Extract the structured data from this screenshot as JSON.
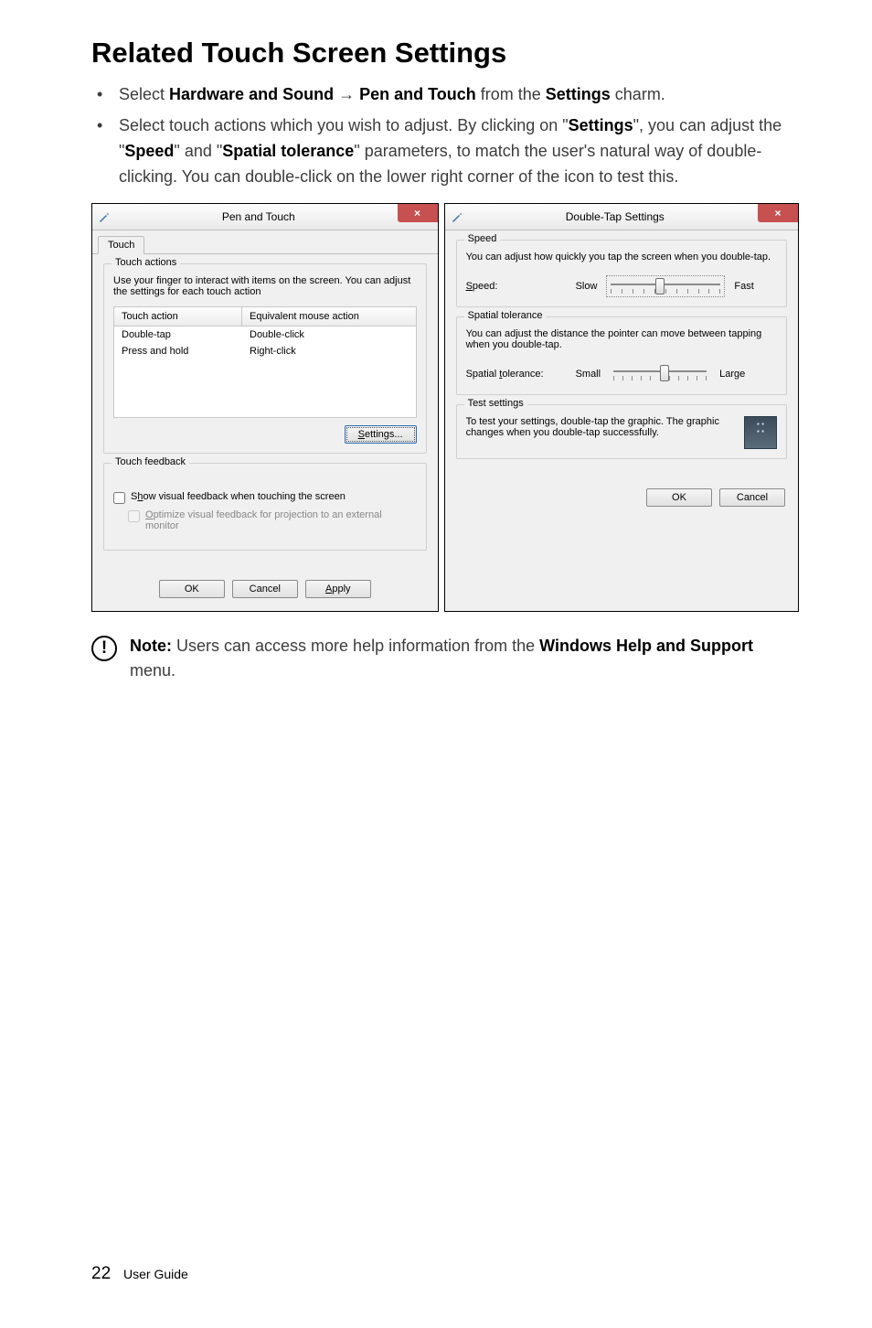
{
  "heading": "Related Touch Screen Settings",
  "bullet1": {
    "pre": "Select ",
    "b1": "Hardware and Sound",
    "arrow": " → ",
    "b2": "Pen and Touch",
    "mid": " from the ",
    "b3": "Settings",
    "post": " charm."
  },
  "bullet2": {
    "pre": "Select touch actions which you wish to adjust. By clicking on \"",
    "b1": "Settings",
    "mid1": "\", you can adjust the \"",
    "b2": "Speed",
    "mid2": "\" and \"",
    "b3": "Spatial tolerance",
    "post": "\" parameters, to match the user's natural way of double-clicking. You can double-click on the lower right corner of the icon to test this."
  },
  "left_dialog": {
    "title": "Pen and Touch",
    "close": "×",
    "tab": "Touch",
    "group_actions_title": "Touch actions",
    "group_actions_desc": "Use your finger to interact with items on the screen. You can adjust the settings for each touch action",
    "col1": "Touch action",
    "col2": "Equivalent mouse action",
    "rows": [
      {
        "a": "Double-tap",
        "b": "Double-click"
      },
      {
        "a": "Press and hold",
        "b": "Right-click"
      }
    ],
    "settings_btn_u": "S",
    "settings_btn_rest": "ettings...",
    "group_feedback_title": "Touch feedback",
    "cb1_u": "h",
    "cb1_pre": "S",
    "cb1_rest": "ow visual feedback when touching the screen",
    "cb2_u": "O",
    "cb2_rest": "ptimize visual feedback for projection to an external monitor",
    "ok": "OK",
    "cancel": "Cancel",
    "apply_u": "A",
    "apply_rest": "pply"
  },
  "right_dialog": {
    "title": "Double-Tap Settings",
    "close": "×",
    "group_speed_title": "Speed",
    "speed_desc": "You can adjust how quickly you tap the screen when you double-tap.",
    "speed_label_u": "S",
    "speed_label_rest": "peed:",
    "slow": "Slow",
    "fast": "Fast",
    "group_spatial_title": "Spatial tolerance",
    "spatial_desc": "You can adjust the distance the pointer can move between tapping when you double-tap.",
    "spatial_label_pre": "Spatial ",
    "spatial_label_u": "t",
    "spatial_label_rest": "olerance:",
    "small": "Small",
    "large": "Large",
    "group_test_title": "Test settings",
    "test_desc": "To test your settings, double-tap the graphic. The graphic changes when you double-tap successfully.",
    "ok": "OK",
    "cancel": "Cancel",
    "slider_speed_pos_pct": 45,
    "slider_spatial_pos_pct": 55,
    "tick_count": 11
  },
  "note": {
    "label": "Note:",
    "pre": " Users can access more help information from the ",
    "b1": "Windows Help and Support",
    "post": " menu."
  },
  "footer": {
    "page": "22",
    "label": "User Guide"
  }
}
